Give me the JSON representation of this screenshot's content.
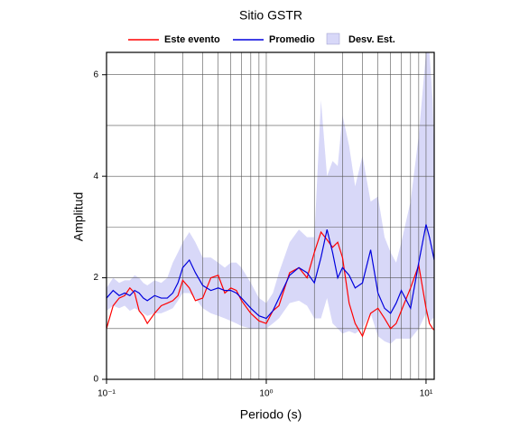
{
  "chart_data": {
    "type": "line",
    "title": "Sitio GSTR",
    "xlabel": "Periodo (s)",
    "ylabel": "Amplitud",
    "xscale": "log",
    "xlim": [
      0.1,
      11.25
    ],
    "ylim": [
      0,
      6.44
    ],
    "xticks": [
      {
        "value": 0.1,
        "label": "10⁻¹"
      },
      {
        "value": 1,
        "label": "10⁰"
      },
      {
        "value": 10,
        "label": "10¹"
      }
    ],
    "yticks": [
      0,
      2,
      4,
      6
    ],
    "xgrid": [
      0.2,
      0.3,
      0.4,
      0.5,
      0.6,
      0.7,
      0.8,
      0.9,
      1,
      2,
      3,
      4,
      5,
      6,
      7,
      8,
      9,
      10
    ],
    "ygrid": [
      1,
      2,
      3,
      4,
      5,
      6
    ],
    "grid": true,
    "legend": "top",
    "x": [
      0.1,
      0.11,
      0.12,
      0.13,
      0.14,
      0.15,
      0.16,
      0.17,
      0.18,
      0.2,
      0.22,
      0.24,
      0.26,
      0.28,
      0.3,
      0.33,
      0.36,
      0.4,
      0.45,
      0.5,
      0.55,
      0.6,
      0.65,
      0.7,
      0.8,
      0.9,
      1.0,
      1.1,
      1.2,
      1.4,
      1.6,
      1.8,
      2.0,
      2.2,
      2.4,
      2.6,
      2.8,
      3.0,
      3.3,
      3.6,
      4.0,
      4.5,
      5,
      5.5,
      6,
      6.5,
      7,
      8,
      9,
      10,
      10.5,
      11,
      11.25
    ],
    "series": [
      {
        "name": "Este evento",
        "color": "#ff0000",
        "kind": "line",
        "values": [
          1.0,
          1.45,
          1.6,
          1.65,
          1.8,
          1.7,
          1.35,
          1.25,
          1.1,
          1.3,
          1.45,
          1.5,
          1.55,
          1.65,
          1.95,
          1.8,
          1.55,
          1.6,
          2.0,
          2.05,
          1.7,
          1.8,
          1.75,
          1.55,
          1.3,
          1.15,
          1.1,
          1.35,
          1.45,
          2.1,
          2.2,
          2.0,
          2.5,
          2.9,
          2.75,
          2.6,
          2.7,
          2.4,
          1.5,
          1.1,
          0.85,
          1.3,
          1.4,
          1.2,
          1.0,
          1.1,
          1.35,
          1.8,
          2.25,
          1.4,
          1.1,
          1.0,
          0.97
        ]
      },
      {
        "name": "Promedio",
        "color": "#0000dd",
        "kind": "line",
        "values": [
          1.6,
          1.75,
          1.65,
          1.7,
          1.65,
          1.75,
          1.7,
          1.6,
          1.55,
          1.65,
          1.6,
          1.6,
          1.7,
          1.9,
          2.2,
          2.35,
          2.1,
          1.85,
          1.75,
          1.8,
          1.75,
          1.75,
          1.7,
          1.6,
          1.4,
          1.25,
          1.2,
          1.35,
          1.6,
          2.05,
          2.2,
          2.1,
          1.9,
          2.4,
          2.95,
          2.5,
          2.0,
          2.2,
          2.05,
          1.8,
          1.9,
          2.55,
          1.7,
          1.4,
          1.3,
          1.5,
          1.75,
          1.4,
          2.3,
          3.05,
          2.8,
          2.5,
          2.35
        ]
      },
      {
        "name": "Desv. Est.",
        "color": "#d8d8f8",
        "kind": "band",
        "lower": [
          1.35,
          1.45,
          1.4,
          1.45,
          1.35,
          1.4,
          1.35,
          1.3,
          1.25,
          1.3,
          1.3,
          1.35,
          1.4,
          1.55,
          1.7,
          1.7,
          1.6,
          1.4,
          1.3,
          1.25,
          1.2,
          1.15,
          1.1,
          1.05,
          1.0,
          1.0,
          1.0,
          1.1,
          1.2,
          1.5,
          1.55,
          1.45,
          1.2,
          1.2,
          1.6,
          1.1,
          1.0,
          0.9,
          0.95,
          0.9,
          1.0,
          1.3,
          0.85,
          0.75,
          0.7,
          0.8,
          0.8,
          0.8,
          1.0,
          1.3,
          1.1,
          1.2,
          1.2
        ],
        "upper": [
          1.8,
          2.0,
          1.9,
          1.95,
          1.95,
          2.05,
          2.0,
          1.9,
          1.85,
          1.95,
          1.9,
          2.0,
          2.3,
          2.5,
          2.7,
          2.9,
          2.7,
          2.4,
          2.4,
          2.3,
          2.2,
          2.3,
          2.3,
          2.2,
          1.9,
          1.6,
          1.5,
          1.7,
          2.1,
          2.7,
          2.95,
          2.8,
          2.8,
          5.5,
          4.0,
          4.3,
          4.2,
          5.2,
          4.6,
          3.8,
          4.4,
          3.5,
          3.6,
          2.8,
          2.5,
          2.3,
          2.7,
          3.5,
          4.8,
          6.44,
          6.44,
          5.5,
          4.5
        ]
      }
    ]
  }
}
